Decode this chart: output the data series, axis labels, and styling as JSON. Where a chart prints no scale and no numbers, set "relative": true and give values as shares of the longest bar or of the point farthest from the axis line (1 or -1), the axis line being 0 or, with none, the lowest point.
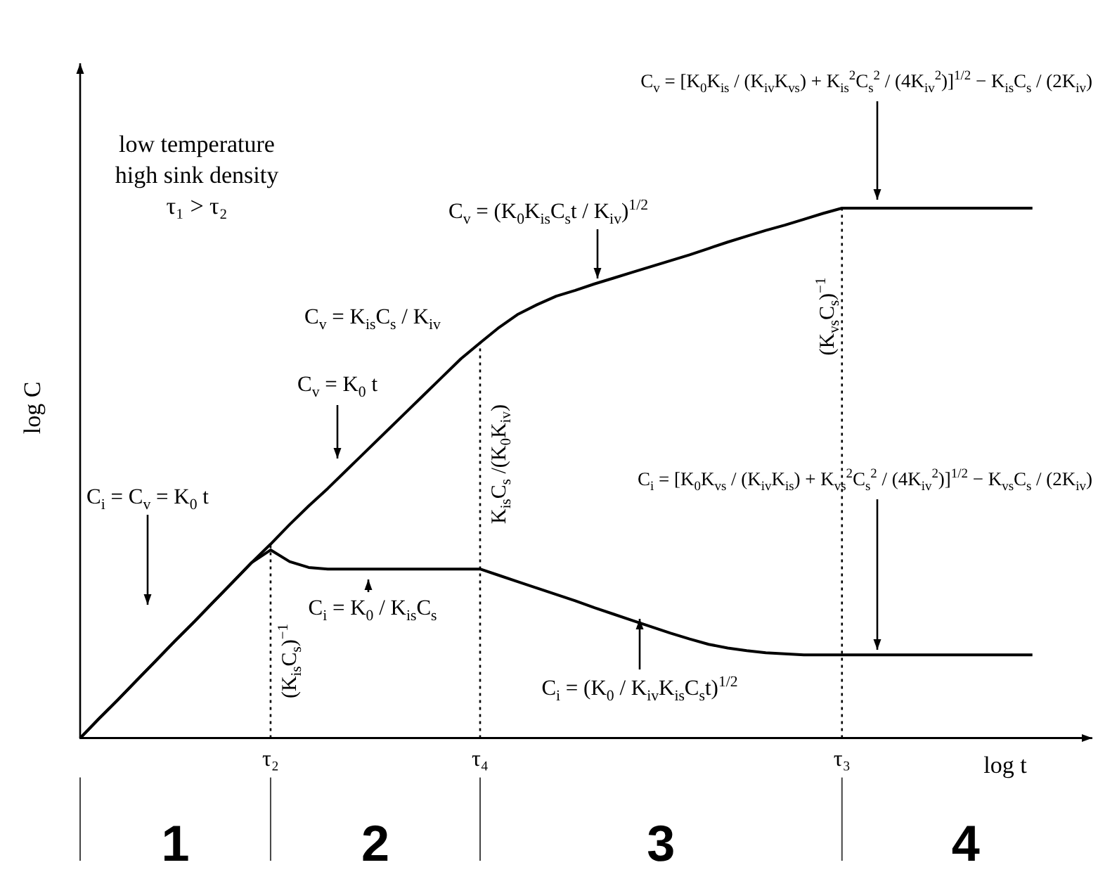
{
  "chart_data": {
    "type": "line",
    "relative": true,
    "xlabel": "log t",
    "ylabel": "log C",
    "categories": [
      null,
      null,
      null,
      null,
      null,
      null,
      null,
      null,
      null,
      null,
      "τ₂",
      null,
      null,
      null,
      null,
      null,
      null,
      null,
      null,
      null,
      null,
      "τ₄",
      null,
      null,
      null,
      null,
      null,
      null,
      null,
      null,
      null,
      null,
      null,
      null,
      null,
      null,
      null,
      null,
      null,
      null,
      "τ₃",
      null,
      null,
      null,
      null,
      null,
      null,
      null,
      null,
      null,
      null,
      null,
      null,
      null
    ],
    "tick_labels": "x",
    "marker": "none",
    "line_style": "solid",
    "series": [
      {
        "color": "#000000",
        "values": [
          0,
          0.037,
          0.073,
          0.11,
          0.147,
          0.184,
          0.22,
          0.257,
          0.294,
          0.331,
          0.366,
          0.403,
          0.438,
          0.471,
          0.506,
          0.541,
          0.576,
          0.611,
          0.646,
          0.681,
          0.716,
          0.746,
          0.775,
          0.8,
          0.818,
          0.834,
          0.845,
          0.857,
          0.868,
          0.879,
          0.89,
          0.901,
          0.912,
          0.924,
          0.936,
          0.947,
          0.958,
          0.968,
          0.979,
          0.99,
          1,
          1,
          1,
          1,
          1,
          1,
          1,
          1,
          1,
          1,
          1,
          null,
          null,
          null
        ]
      },
      {
        "color": "#000000",
        "values": [
          0,
          0.037,
          0.073,
          0.11,
          0.147,
          0.184,
          0.22,
          0.257,
          0.294,
          0.331,
          0.355,
          0.333,
          0.322,
          0.319,
          0.319,
          0.319,
          0.319,
          0.319,
          0.319,
          0.319,
          0.319,
          0.319,
          0.307,
          0.295,
          0.283,
          0.271,
          0.259,
          0.246,
          0.234,
          0.222,
          0.21,
          0.198,
          0.187,
          0.177,
          0.17,
          0.165,
          0.161,
          0.159,
          0.157,
          0.157,
          0.157,
          0.157,
          0.157,
          0.157,
          0.157,
          0.157,
          0.157,
          0.157,
          0.157,
          0.157,
          0.157,
          null,
          null,
          null
        ]
      }
    ],
    "ref_lines": [
      {
        "axis": "x",
        "value": "τ₂",
        "label": "(K$_{is}$C$_{s}$)$^{−1}$",
        "line_style": "dotted"
      },
      {
        "axis": "x",
        "value": "τ₄",
        "label": "K$_{is}$C$_{s}$ /(K$_{0}$K$_{iv}$)",
        "line_style": "dotted"
      },
      {
        "axis": "x",
        "value": "τ₃",
        "label": "(K$_{vs}$C$_{s}$)$^{−1}$",
        "line_style": "dotted"
      }
    ],
    "annotations": [
      "low temperature\nhigh sink density\nτ₁ > τ₂",
      "C$_{i}$ = C$_{v}$ = K$_{0}$ t",
      "C$_{v}$ = K$_{0}$ t",
      "C$_{v}$ = K$_{is}$C$_{s}$ / K$_{iv}$",
      "C$_{v}$ = (K$_{0}$K$_{is}$C$_{s}$t / K$_{iv}$)$^{1/2}$",
      "C$_{v}$ = [K$_{0}$K$_{is}$ / (K$_{iv}$K$_{vs}$) + K$_{is}$$^{2}$C$_{s}$$^{2}$ / (4K$_{iv}$$^{2}$)]$^{1/2}$ − K$_{is}$C$_{s}$ / (2K$_{iv}$)",
      "C$_{i}$ = K$_{0}$ / K$_{is}$C$_{s}$",
      "C$_{i}$ = (K$_{0}$ / K$_{iv}$K$_{is}$C$_{s}$t)$^{1/2}$",
      "C$_{i}$ = [K$_{0}$K$_{vs}$ / (K$_{iv}$K$_{is}$) + K$_{vs}$$^{2}$C$_{s}$$^{2}$ / (4K$_{iv}$$^{2}$)]$^{1/2}$ − K$_{vs}$C$_{s}$ / (2K$_{iv}$)",
      "1",
      "2",
      "3",
      "4"
    ]
  }
}
